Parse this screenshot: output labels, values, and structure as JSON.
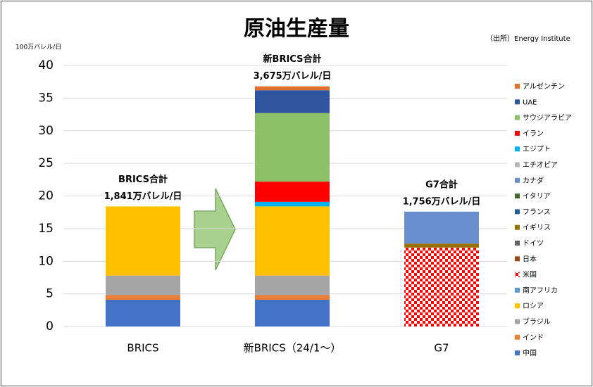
{
  "chart_data": {
    "type": "stacked_bar",
    "title": "原油生産量",
    "source": "（出所）Energy Institute",
    "y_label": "100万バレル/日",
    "categories": [
      "BRICS",
      "新BRICS（24/1～）",
      "G7"
    ],
    "ylim": [
      0,
      40
    ],
    "yticks": [
      0,
      5,
      10,
      15,
      20,
      25,
      30,
      35,
      40
    ],
    "annotations": [
      [
        "BRICS合計",
        "1,841万バレル/日"
      ],
      [
        "新BRICS合計",
        "3,675万バレル/日"
      ],
      [
        "G7合計",
        "1,756万バレル/日"
      ]
    ],
    "series": [
      {
        "name": "中国",
        "color": "#4472c4",
        "values": [
          4.1,
          4.1,
          0
        ]
      },
      {
        "name": "インド",
        "color": "#ed7d31",
        "values": [
          0.7,
          0.7,
          0
        ]
      },
      {
        "name": "ブラジル",
        "color": "#a5a5a5",
        "values": [
          3.0,
          3.0,
          0
        ]
      },
      {
        "name": "ロシア",
        "color": "#ffc000",
        "values": [
          10.6,
          10.6,
          0
        ]
      },
      {
        "name": "南アフリカ",
        "color": "#5b9bd5",
        "values": [
          0,
          0,
          0
        ]
      },
      {
        "name": "米国",
        "color": "#ff0000",
        "pattern": "checkered",
        "values": [
          0,
          0,
          12.1
        ]
      },
      {
        "name": "日本",
        "color": "#9e480e",
        "values": [
          0,
          0,
          0
        ]
      },
      {
        "name": "ドイツ",
        "color": "#636363",
        "values": [
          0,
          0,
          0
        ]
      },
      {
        "name": "イギリス",
        "color": "#997300",
        "values": [
          0,
          0,
          0.6
        ]
      },
      {
        "name": "フランス",
        "color": "#255e91",
        "values": [
          0,
          0,
          0
        ]
      },
      {
        "name": "イタリア",
        "color": "#43682b",
        "values": [
          0,
          0,
          0
        ]
      },
      {
        "name": "カナダ",
        "color": "#698ed0",
        "values": [
          0,
          0,
          4.9
        ]
      },
      {
        "name": "エチオピア",
        "color": "#b7b7b7",
        "values": [
          0,
          0,
          0
        ]
      },
      {
        "name": "エジプト",
        "color": "#00b0f0",
        "values": [
          0,
          0.7,
          0
        ]
      },
      {
        "name": "イラン",
        "color": "#ff0000",
        "values": [
          0,
          3.1,
          0
        ]
      },
      {
        "name": "サウジアラビア",
        "color": "#8cc168",
        "values": [
          0,
          10.5,
          0
        ]
      },
      {
        "name": "UAE",
        "color": "#2f55a0",
        "values": [
          0,
          3.5,
          0
        ]
      },
      {
        "name": "アルゼンチン",
        "color": "#e0702c",
        "values": [
          0,
          0.6,
          0
        ]
      }
    ]
  }
}
